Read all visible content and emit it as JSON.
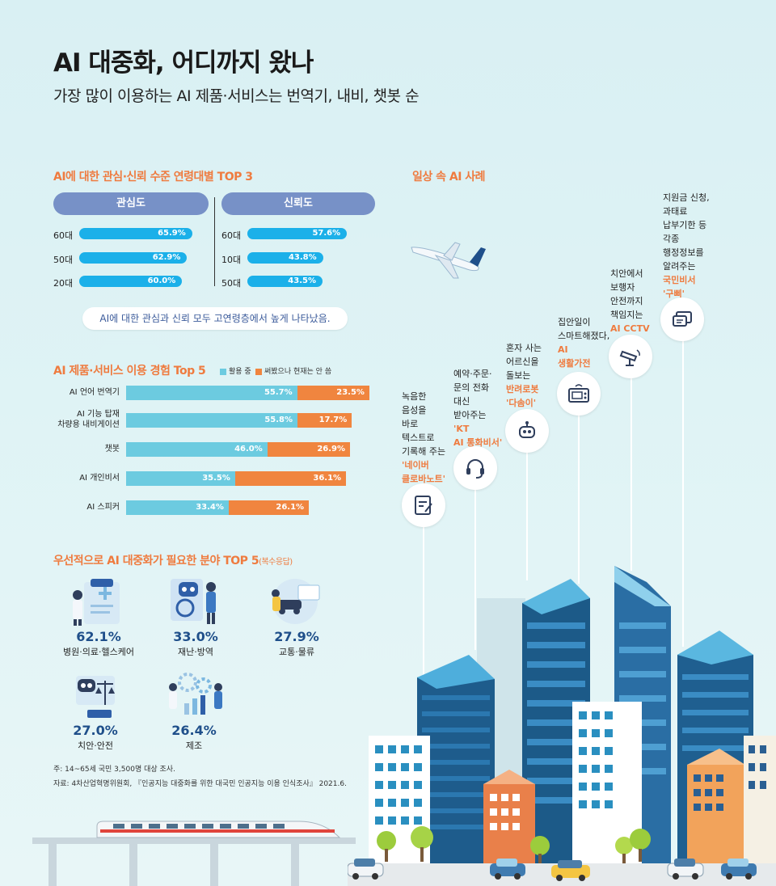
{
  "header": {
    "title": "AI 대중화, 어디까지 왔나",
    "subtitle": "가장 많이 이용하는 AI 제품·서비스는 번역기, 내비, 챗봇 순"
  },
  "age_section": {
    "title": "AI에 대한 관심·신뢰 수준 연령대별 TOP 3",
    "interest_head": "관심도",
    "trust_head": "신뢰도",
    "note": "AI에 대한 관심과 신뢰 모두 고연령층에서 높게 나타났음."
  },
  "experience_section": {
    "title": "AI 제품·서비스 이용 경험 Top 5",
    "legend": [
      "활용 중",
      "써봤으나 현재는 안 씀"
    ]
  },
  "fields_section": {
    "title": "우선적으로 AI 대중화가 필요한 분야 TOP 5",
    "title_suffix": "(복수응답)",
    "items": [
      {
        "pct": "62.1%",
        "name": "병원·의료·헬스케어"
      },
      {
        "pct": "33.0%",
        "name": "재난·방역"
      },
      {
        "pct": "27.9%",
        "name": "교통·물류"
      },
      {
        "pct": "27.0%",
        "name": "치안·안전"
      },
      {
        "pct": "26.4%",
        "name": "제조"
      }
    ]
  },
  "footnotes": {
    "note": "주: 14~65세 국민 3,500명 대상 조사.",
    "source": "자료: 4차산업혁명위원회, 『인공지능 대중화를 위한 대국민 인공지능 이용 인식조사』 2021.6."
  },
  "cases_section": {
    "title": "일상 속 AI 사례",
    "cases": [
      {
        "text": "녹음한\n음성을\n바로\n텍스트로\n기록해 주는",
        "highlight": "'네이버\n클로바노트'",
        "icon": "memo-icon"
      },
      {
        "text": "예약·주문·\n문의 전화\n대신\n받아주는",
        "highlight": "'KT\nAI 통화비서'",
        "icon": "headset-icon"
      },
      {
        "text": "혼자 사는\n어르신을\n돌보는",
        "highlight": "반려로봇\n'다솜이'",
        "icon": "robot-icon"
      },
      {
        "text": "집안일이\n스마트해졌다,",
        "highlight": "AI\n생활가전",
        "icon": "appliance-icon"
      },
      {
        "text": "치안에서\n보행자\n안전까지\n책임지는",
        "highlight": "AI CCTV",
        "icon": "cctv-icon"
      },
      {
        "text": "지원금 신청,\n과태료\n납부기한 등\n각종\n행정정보를\n알려주는",
        "highlight": "국민비서\n'구삐'",
        "icon": "chat-icon"
      }
    ]
  },
  "colors": {
    "accent_orange": "#ef7b3f",
    "bar_blue": "#1bb0e9",
    "using_cyan": "#6ccbe0",
    "used_orange": "#f0853f",
    "head_blue": "#7791c7"
  },
  "chart_data": [
    {
      "type": "bar",
      "title": "관심도",
      "categories": [
        "60대",
        "50대",
        "20대"
      ],
      "values": [
        65.9,
        62.9,
        60.0
      ],
      "labels": [
        "65.9%",
        "62.9%",
        "60.0%"
      ],
      "orientation": "horizontal"
    },
    {
      "type": "bar",
      "title": "신뢰도",
      "categories": [
        "60대",
        "10대",
        "50대"
      ],
      "values": [
        57.6,
        43.8,
        43.5
      ],
      "labels": [
        "57.6%",
        "43.8%",
        "43.5%"
      ],
      "orientation": "horizontal"
    },
    {
      "type": "bar",
      "stacked": true,
      "orientation": "horizontal",
      "title": "AI 제품·서비스 이용 경험 Top 5",
      "categories": [
        "AI 언어 번역기",
        "AI 기능 탑재\n차량용 내비게이션",
        "챗봇",
        "AI 개인비서",
        "AI 스피커"
      ],
      "series": [
        {
          "name": "활용 중",
          "values": [
            55.7,
            55.8,
            46.0,
            35.5,
            33.4
          ],
          "labels": [
            "55.7%",
            "55.8%",
            "46.0%",
            "35.5%",
            "33.4%"
          ]
        },
        {
          "name": "써봤으나 현재는 안 씀",
          "values": [
            23.5,
            17.7,
            26.9,
            36.1,
            26.1
          ],
          "labels": [
            "23.5%",
            "17.7%",
            "26.9%",
            "36.1%",
            "26.1%"
          ]
        }
      ]
    }
  ]
}
